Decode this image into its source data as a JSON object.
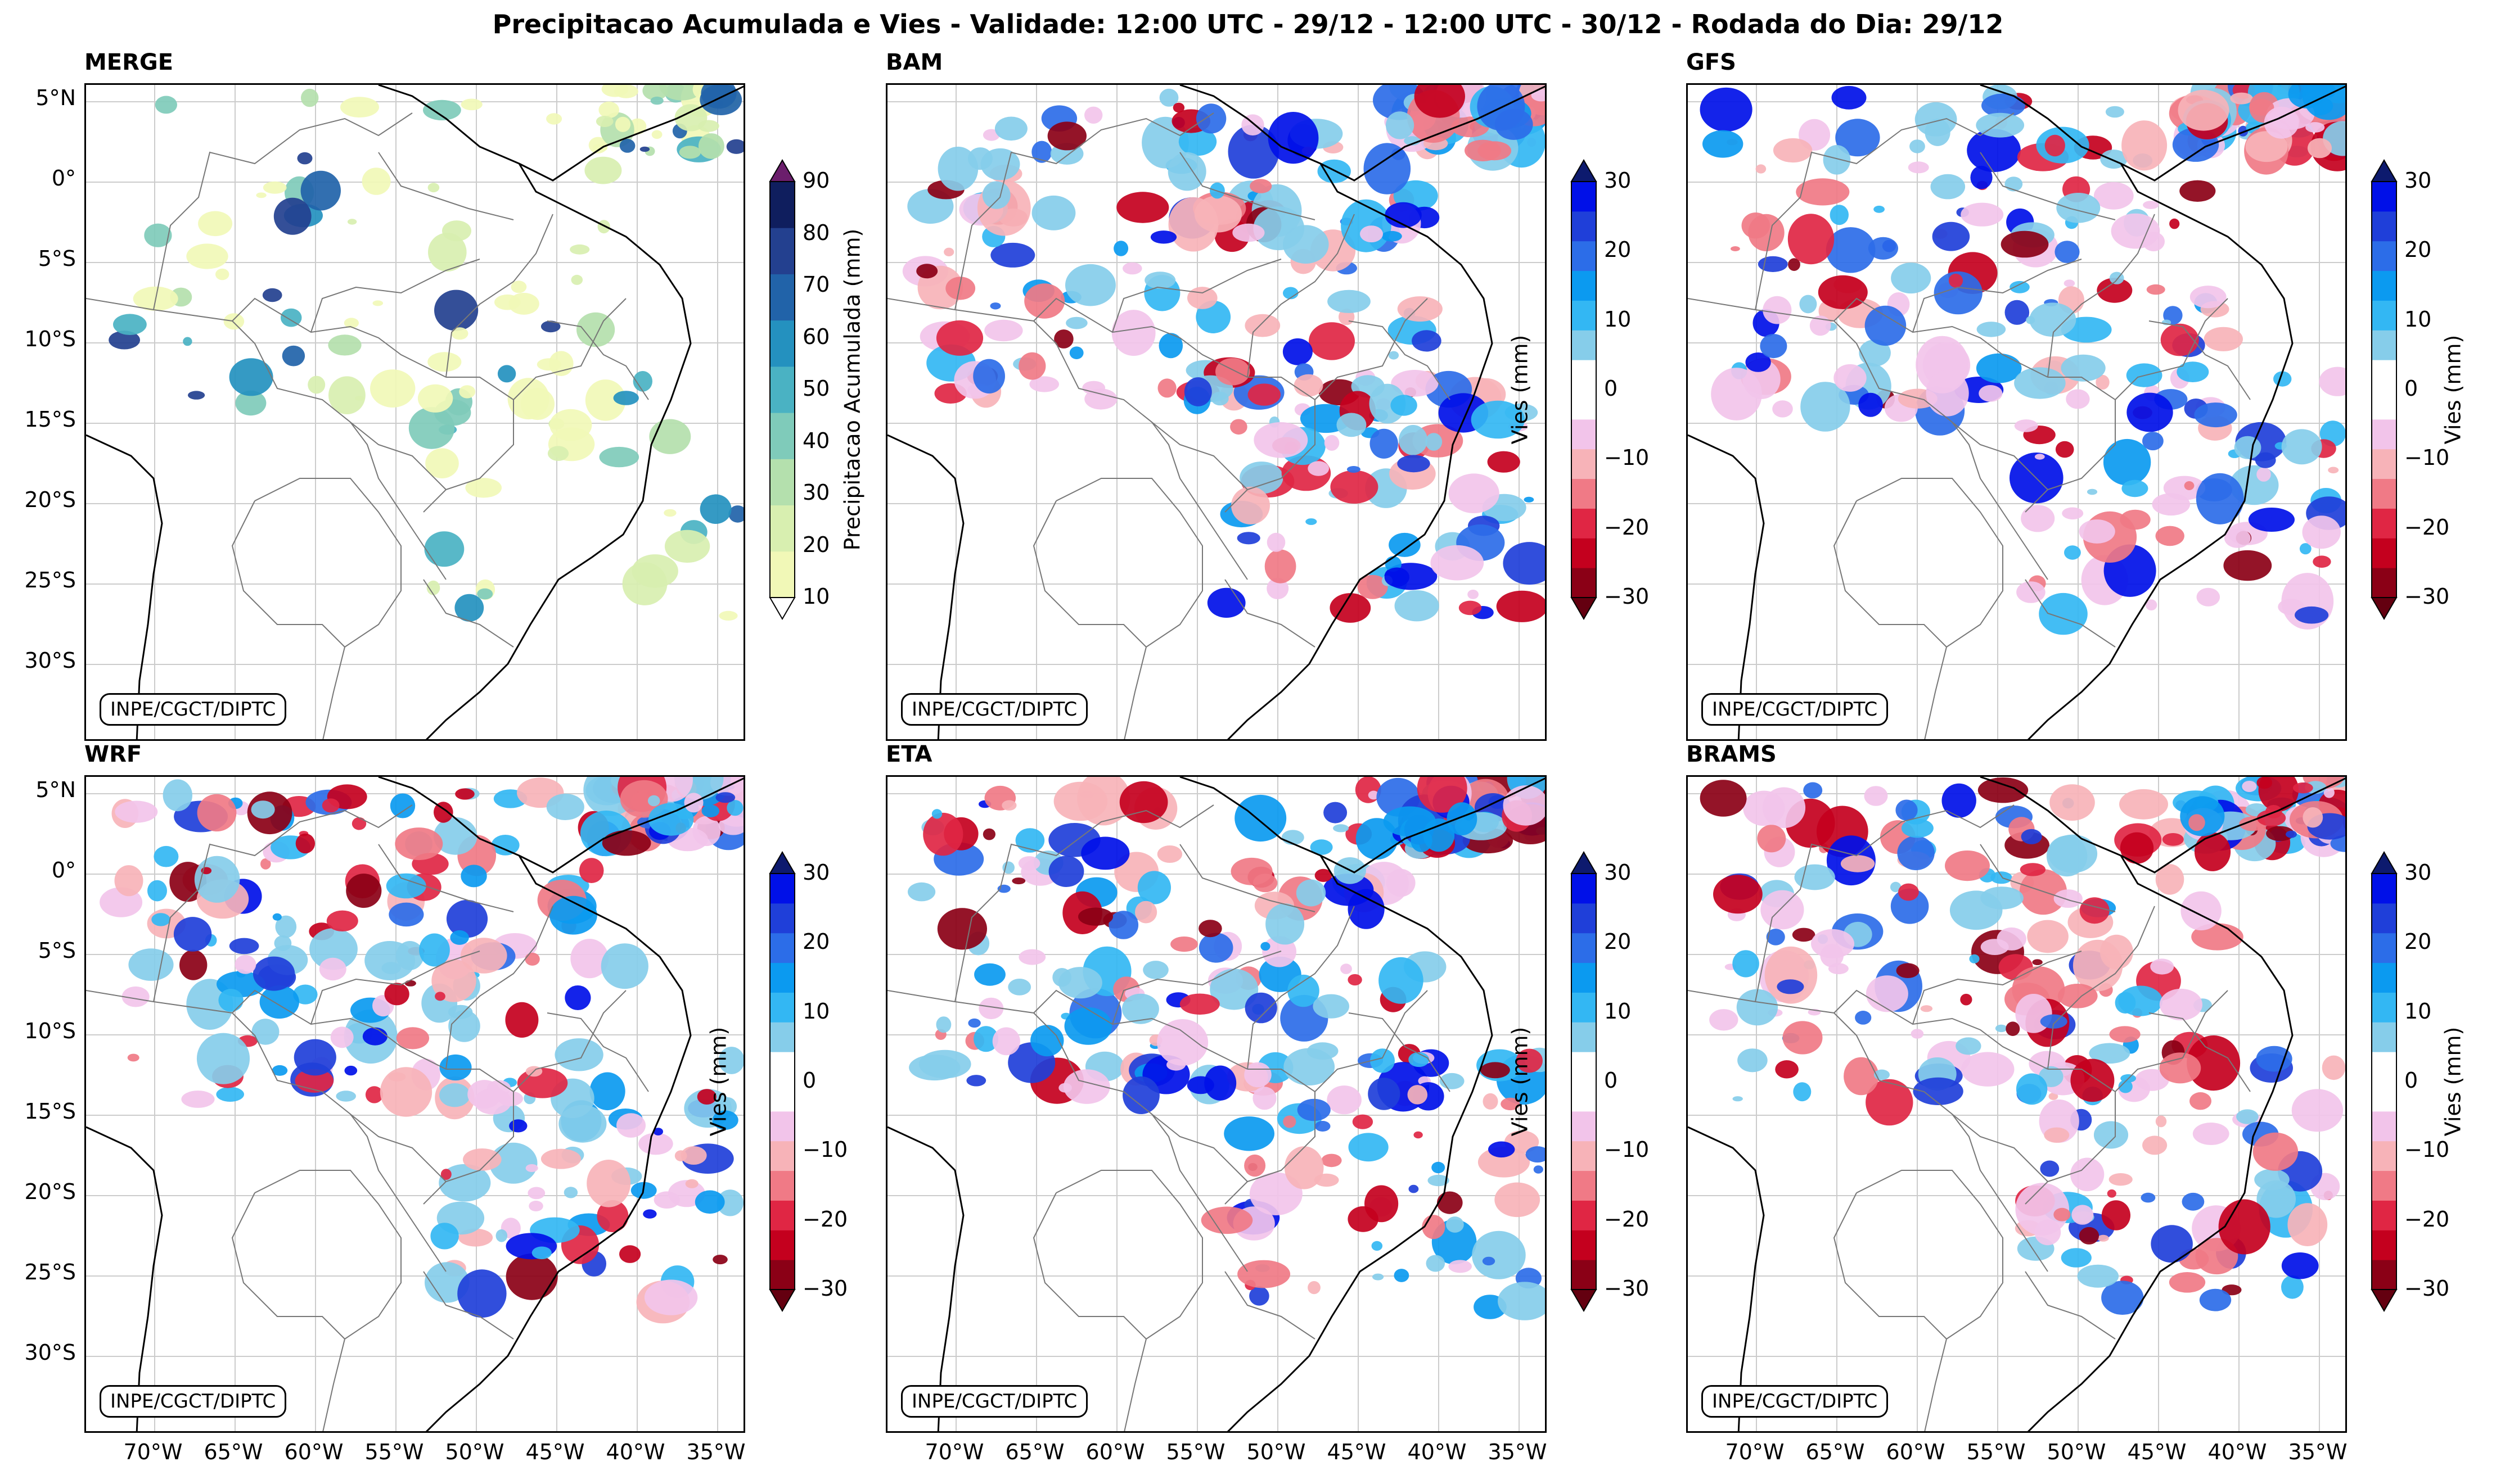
{
  "figure_title": "Precipitacao Acumulada e Vies - Validade: 12:00 UTC - 29/12 - 12:00 UTC - 30/12 - Rodada do Dia: 29/12",
  "credit": "INPE/CGCT/DIPTC",
  "lat_labels": [
    "5°N",
    "0°",
    "5°S",
    "10°S",
    "15°S",
    "20°S",
    "25°S",
    "30°S"
  ],
  "lon_labels": [
    "70°W",
    "65°W",
    "60°W",
    "55°W",
    "50°W",
    "45°W",
    "40°W",
    "35°W"
  ],
  "panels": [
    {
      "id": "merge",
      "title": "MERGE",
      "kind": "precip"
    },
    {
      "id": "bam",
      "title": "BAM",
      "kind": "bias"
    },
    {
      "id": "gfs",
      "title": "GFS",
      "kind": "bias"
    },
    {
      "id": "wrf",
      "title": "WRF",
      "kind": "bias"
    },
    {
      "id": "eta",
      "title": "ETA",
      "kind": "bias"
    },
    {
      "id": "brams",
      "title": "BRAMS",
      "kind": "bias"
    }
  ],
  "precip_colorbar": {
    "label": "Precipitacao Acumulada (mm)",
    "ticks": [
      "90",
      "80",
      "70",
      "60",
      "50",
      "40",
      "30",
      "20",
      "10"
    ],
    "colors": [
      "#f1f8b7",
      "#d8efb0",
      "#b4e0ad",
      "#7fcbba",
      "#4ab2c3",
      "#2491bf",
      "#2163a9",
      "#23408f",
      "#0f1e5e"
    ],
    "under_color": "#ffffff",
    "over_color": "#6b1e6c"
  },
  "bias_colorbar": {
    "label": "Vies (mm)",
    "ticks": [
      "30",
      "20",
      "10",
      "0",
      "−10",
      "−20",
      "−30"
    ],
    "colors": [
      "#8b0016",
      "#c4001e",
      "#e02644",
      "#f07a86",
      "#f7b3b8",
      "#f2c4ea",
      "#ffffff",
      "#ffffff",
      "#86cdea",
      "#33b7f3",
      "#0b9af0",
      "#2c6de8",
      "#1f3fd9",
      "#0010e8"
    ],
    "under_color": "#640010",
    "over_color": "#0d1a6e"
  }
}
